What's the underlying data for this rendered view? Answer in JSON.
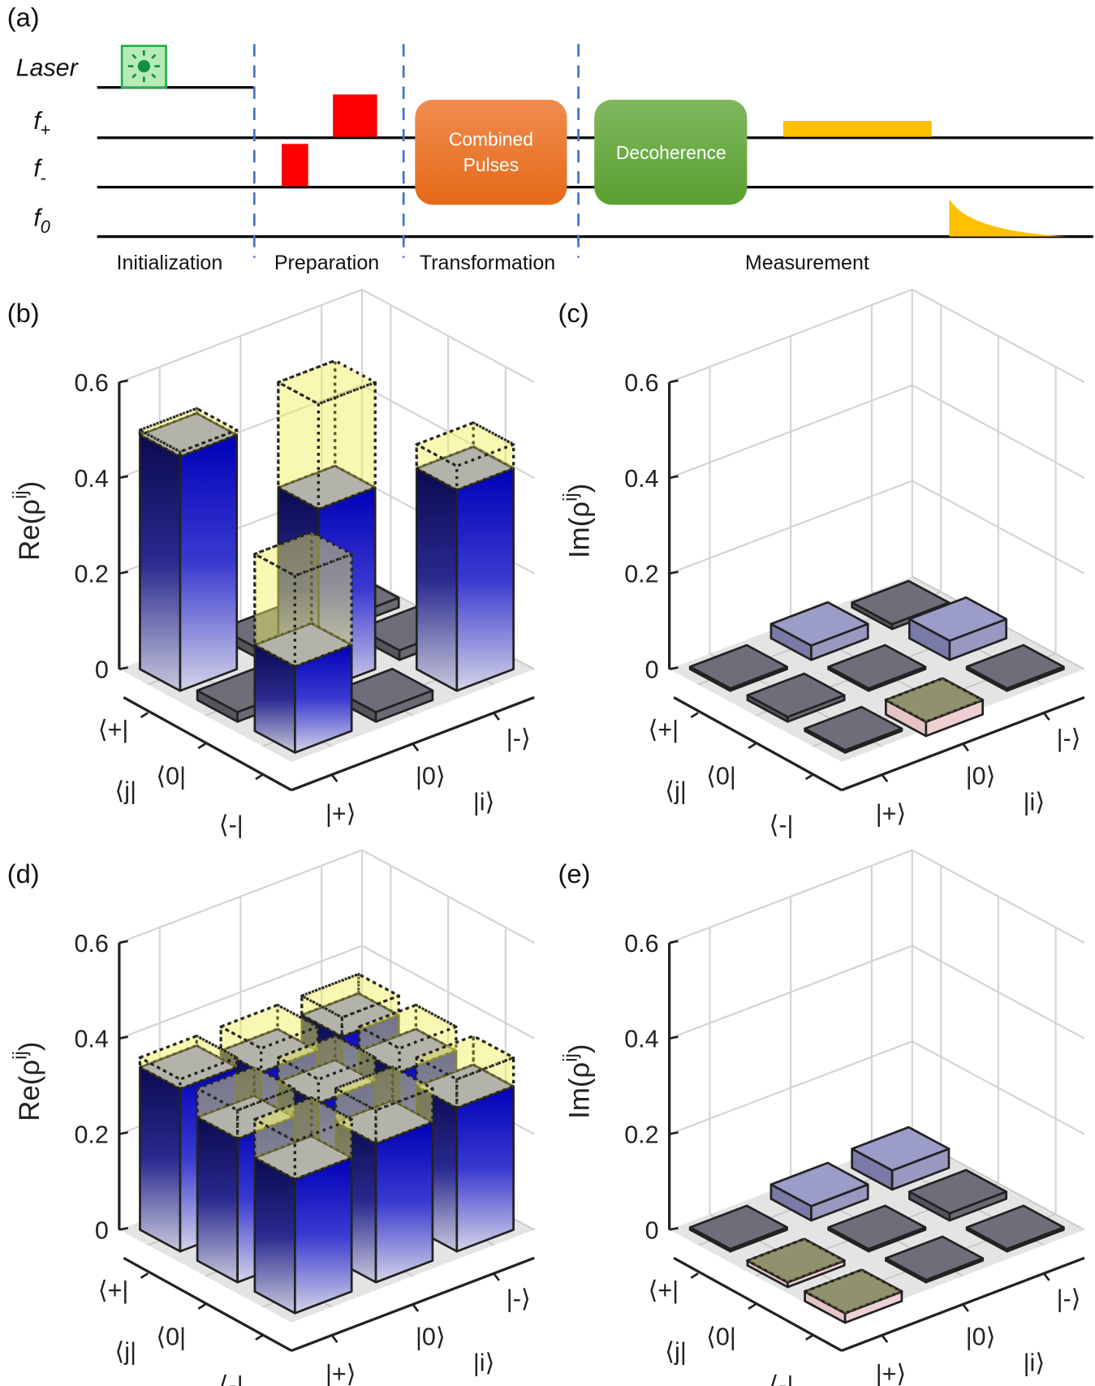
{
  "panel_labels": {
    "a": "(a)",
    "b": "(b)",
    "c": "(c)",
    "d": "(d)",
    "e": "(e)"
  },
  "sequence": {
    "rows": {
      "laser": "Laser",
      "f_plus": {
        "main": "f",
        "sub": "+"
      },
      "f_minus": {
        "main": "f",
        "sub": "-"
      },
      "f_zero": {
        "main": "f",
        "sub": "0"
      }
    },
    "blocks": {
      "combined_line1": "Combined",
      "combined_line2": "Pulses",
      "decoherence": "Decoherence"
    },
    "phases": [
      "Initialization",
      "Preparation",
      "Transformation",
      "Measurement"
    ],
    "colors": {
      "laser": "#22b04b",
      "pulse": "#ff0000",
      "combined": "#ee7a30",
      "decoherence": "#6aaa40",
      "readout": "#ffc000",
      "divider": "#4472c4"
    }
  },
  "chart_data": [
    {
      "panel": "b",
      "type": "bar3d",
      "zlabel": {
        "main": "Re(ρ",
        "sup": "ij",
        "end": ")"
      },
      "zlim": [
        0,
        0.6
      ],
      "zticks": [
        "0",
        "0.2",
        "0.4",
        "0.6"
      ],
      "xticklabels": [
        "|+⟩",
        "|0⟩",
        "|-⟩"
      ],
      "xlabel": "|i⟩",
      "yticklabels": [
        "⟨+|",
        "⟨0|",
        "⟨-|"
      ],
      "ylabel": "⟨j|",
      "measured": [
        [
          0.49,
          0.02,
          0.02
        ],
        [
          0.02,
          0.38,
          0.02
        ],
        [
          0.18,
          0.02,
          0.42
        ]
      ],
      "ideal": [
        [
          0.5,
          0,
          0
        ],
        [
          0,
          0.6,
          0
        ],
        [
          0.37,
          0,
          0.47
        ]
      ]
    },
    {
      "panel": "c",
      "type": "bar3d",
      "zlabel": {
        "main": "Im(ρ",
        "sup": "ij",
        "end": ")"
      },
      "zlim": [
        0,
        0.6
      ],
      "zticks": [
        "0",
        "0.2",
        "0.4",
        "0.6"
      ],
      "xticklabels": [
        "|+⟩",
        "|0⟩",
        "|-⟩"
      ],
      "xlabel": "|i⟩",
      "yticklabels": [
        "⟨+|",
        "⟨0|",
        "⟨-|"
      ],
      "ylabel": "⟨j|",
      "measured": [
        [
          0.005,
          0.03,
          0.01
        ],
        [
          0.01,
          0.005,
          0.04
        ],
        [
          0.005,
          -0.03,
          0.005
        ]
      ],
      "ideal": [
        [
          0,
          0,
          0
        ],
        [
          0,
          0,
          0
        ],
        [
          0,
          0,
          0
        ]
      ]
    },
    {
      "panel": "d",
      "type": "bar3d",
      "zlabel": {
        "main": "Re(ρ",
        "sup": "ij",
        "end": ")"
      },
      "zlim": [
        0,
        0.6
      ],
      "zticks": [
        "0",
        "0.2",
        "0.4",
        "0.6"
      ],
      "xticklabels": [
        "|+⟩",
        "|0⟩",
        "|-⟩"
      ],
      "xlabel": "|i⟩",
      "yticklabels": [
        "⟨+|",
        "⟨0|",
        "⟨-|"
      ],
      "ylabel": "⟨j|",
      "measured": [
        [
          0.34,
          0.31,
          0.32
        ],
        [
          0.3,
          0.31,
          0.31
        ],
        [
          0.28,
          0.29,
          0.3
        ]
      ],
      "ideal": [
        [
          0.36,
          0.36,
          0.36
        ],
        [
          0.36,
          0.36,
          0.36
        ],
        [
          0.36,
          0.36,
          0.36
        ]
      ]
    },
    {
      "panel": "e",
      "type": "bar3d",
      "zlabel": {
        "main": "Im(ρ",
        "sup": "ij",
        "end": ")"
      },
      "zlim": [
        0,
        0.6
      ],
      "zticks": [
        "0",
        "0.2",
        "0.4",
        "0.6"
      ],
      "xticklabels": [
        "|+⟩",
        "|0⟩",
        "|-⟩"
      ],
      "xlabel": "|i⟩",
      "yticklabels": [
        "⟨+|",
        "⟨0|",
        "⟨-|"
      ],
      "ylabel": "⟨j|",
      "measured": [
        [
          0.005,
          0.03,
          0.04
        ],
        [
          -0.01,
          0.005,
          0.015
        ],
        [
          -0.02,
          0.005,
          0.005
        ]
      ],
      "ideal": [
        [
          0,
          0,
          0
        ],
        [
          0,
          0,
          0
        ],
        [
          0,
          0,
          0
        ]
      ]
    }
  ]
}
